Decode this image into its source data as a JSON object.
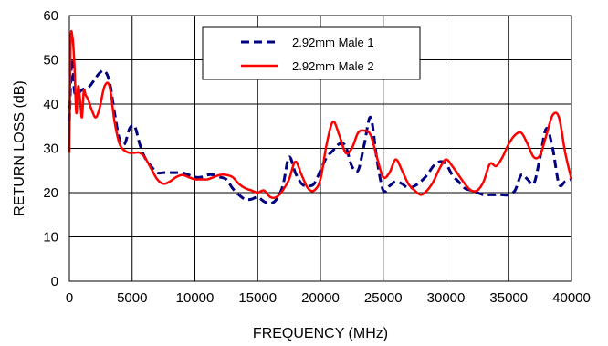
{
  "chart_data": {
    "type": "line",
    "title": "",
    "xlabel": "FREQUENCY (MHz)",
    "ylabel": "RETURN LOSS (dB)",
    "xlim": [
      0,
      40000
    ],
    "ylim": [
      0,
      60
    ],
    "xticks": [
      0,
      5000,
      10000,
      15000,
      20000,
      25000,
      30000,
      35000,
      40000
    ],
    "yticks": [
      0,
      10,
      20,
      30,
      40,
      50,
      60
    ],
    "grid": true,
    "legend_position": "top-center",
    "series": [
      {
        "name": "2.92mm Male 1",
        "color": "#000080",
        "style": "dashed",
        "x": [
          0,
          200,
          400,
          600,
          900,
          1200,
          1600,
          2000,
          2400,
          2800,
          3200,
          3600,
          4000,
          4400,
          4800,
          5200,
          5600,
          6000,
          6500,
          7000,
          7500,
          8000,
          8500,
          9000,
          9500,
          10000,
          10500,
          11000,
          11500,
          12000,
          12500,
          13000,
          13500,
          14000,
          14500,
          15000,
          15500,
          16000,
          16500,
          17000,
          17500,
          18000,
          18500,
          19000,
          19500,
          20000,
          20500,
          21000,
          21500,
          22000,
          22500,
          23000,
          23500,
          24000,
          24500,
          25000,
          25500,
          26000,
          26500,
          27000,
          27500,
          28000,
          28500,
          29000,
          29500,
          30000,
          30500,
          31000,
          31500,
          32000,
          32500,
          33000,
          33500,
          34000,
          34500,
          35000,
          35500,
          36000,
          36500,
          37000,
          37500,
          38000,
          38500,
          39000,
          39500,
          40000
        ],
        "y": [
          36,
          50,
          43,
          42,
          43,
          43.5,
          44,
          45.5,
          47,
          47.5,
          45,
          38,
          32,
          31,
          34.5,
          35,
          31,
          28,
          26,
          24.5,
          24.5,
          24.5,
          24.5,
          24.5,
          24,
          23.5,
          23.5,
          24,
          24,
          23.5,
          23,
          21,
          19.5,
          18.5,
          18.5,
          19,
          18,
          17.5,
          18.5,
          21.5,
          28,
          24.5,
          22,
          21.5,
          22,
          25,
          28,
          29.5,
          31,
          30.5,
          26,
          25,
          31,
          37,
          27.5,
          20.5,
          21.5,
          22.5,
          22,
          21,
          21.5,
          22.5,
          24,
          26,
          27,
          26.5,
          24,
          22.5,
          21,
          20.5,
          20,
          19.5,
          19.5,
          19.5,
          19.5,
          19.5,
          20.5,
          24,
          23,
          22,
          28,
          34.5,
          30,
          22,
          22.5,
          23
        ]
      },
      {
        "name": "2.92mm Male 2",
        "color": "#ff0000",
        "style": "solid",
        "x": [
          0,
          100,
          250,
          400,
          550,
          700,
          850,
          1000,
          1150,
          1300,
          1500,
          1800,
          2100,
          2400,
          2800,
          3200,
          3600,
          4000,
          4400,
          4800,
          5200,
          5600,
          6000,
          6500,
          7000,
          7500,
          8000,
          8500,
          9000,
          9500,
          10000,
          10500,
          11000,
          11500,
          12000,
          12500,
          13000,
          13500,
          14000,
          14500,
          15000,
          15500,
          16000,
          16500,
          17000,
          17500,
          18000,
          18500,
          19000,
          19500,
          20000,
          20500,
          21000,
          21500,
          22000,
          22500,
          23000,
          23500,
          24000,
          24500,
          25000,
          25500,
          26000,
          26500,
          27000,
          27500,
          28000,
          28500,
          29000,
          29500,
          30000,
          30500,
          31000,
          31500,
          32000,
          32500,
          33000,
          33500,
          34000,
          34500,
          35000,
          35500,
          36000,
          36500,
          37000,
          37500,
          38000,
          38500,
          39000,
          39500,
          40000
        ],
        "y": [
          29,
          54,
          55,
          49,
          38,
          44,
          41,
          37,
          43,
          42,
          41,
          38.5,
          37,
          39,
          44,
          44,
          36,
          31,
          29.5,
          29,
          29,
          29,
          28,
          25.5,
          23,
          22,
          22.5,
          23.5,
          24,
          23.5,
          23,
          23,
          23,
          23.5,
          24,
          24,
          23.5,
          22,
          21,
          20.5,
          20,
          20.5,
          19,
          19,
          20.5,
          23,
          27,
          24,
          21,
          20.5,
          23,
          31,
          36,
          33,
          29,
          30,
          33.5,
          34,
          33,
          28,
          23.5,
          24.5,
          27.5,
          25,
          22,
          20.5,
          19.5,
          20.5,
          22.5,
          25.5,
          27.5,
          26,
          24,
          22,
          20.5,
          20.5,
          22.5,
          26.5,
          26,
          28,
          31,
          33,
          33.5,
          31,
          28,
          28.5,
          33,
          37.5,
          37,
          29,
          23
        ]
      }
    ]
  }
}
